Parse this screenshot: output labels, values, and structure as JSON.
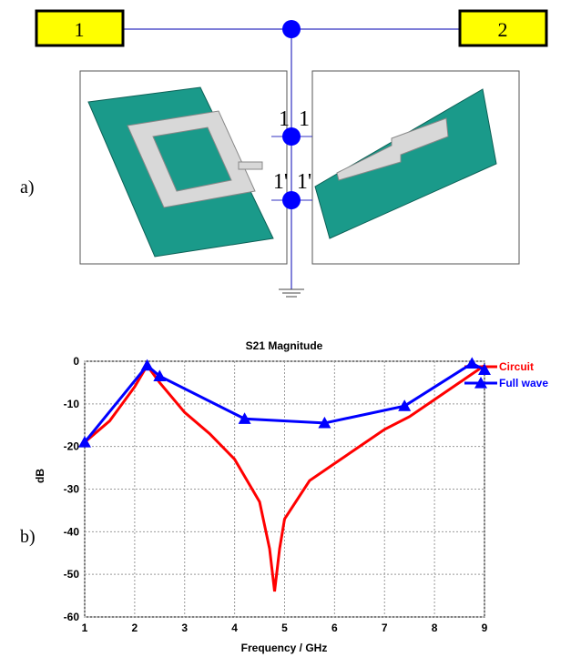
{
  "panel_labels": [
    "a)",
    "b)"
  ],
  "diagram": {
    "ports": [
      "1",
      "2"
    ],
    "node_labels": [
      "1",
      "1",
      "1'",
      "1'"
    ]
  },
  "chart_data": {
    "type": "line",
    "title": "S21 Magnitude",
    "x_label": "Frequency / GHz",
    "y_label": "dB",
    "xlim": [
      1,
      9
    ],
    "xticks": [
      1,
      2,
      3,
      4,
      5,
      6,
      7,
      8,
      9
    ],
    "ylim": [
      -60,
      0
    ],
    "yticks": [
      -60,
      -50,
      -40,
      -30,
      -20,
      -10,
      0
    ],
    "grid": true,
    "legend": "right",
    "series": [
      {
        "name": "Circuit",
        "color": "#ff0000",
        "marker": "none",
        "x": [
          1,
          1.5,
          2,
          2.25,
          2.5,
          3,
          3.5,
          4,
          4.5,
          4.7,
          4.8,
          4.9,
          5,
          5.5,
          6,
          6.5,
          7,
          7.5,
          8,
          8.5,
          8.75,
          9
        ],
        "values": [
          -19,
          -14,
          -6,
          -1,
          -5,
          -12,
          -17,
          -23,
          -33,
          -44,
          -54,
          -44,
          -37,
          -28,
          -24,
          -20,
          -16,
          -13,
          -9,
          -5,
          -3,
          -1
        ]
      },
      {
        "name": "Full wave",
        "color": "#0000ff",
        "marker": "triangle",
        "x": [
          1,
          2.25,
          2.5,
          4.2,
          5.8,
          7.4,
          8.75,
          9
        ],
        "values": [
          -19,
          -1,
          -3.5,
          -13.5,
          -14.5,
          -10.5,
          -0.5,
          -2
        ]
      }
    ]
  }
}
